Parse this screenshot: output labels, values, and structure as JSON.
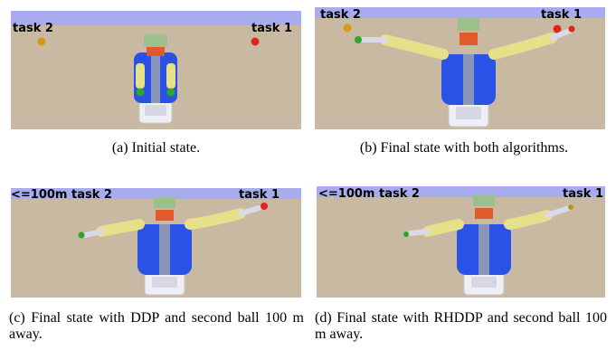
{
  "figure": {
    "panels": [
      {
        "id": "a",
        "labels": {
          "left": "task 2",
          "right": "task 1"
        },
        "arms": "down",
        "ball_left_color": "#d39a1a",
        "ball_right_color": "#e0261b",
        "caption": "(a) Initial state."
      },
      {
        "id": "b",
        "labels": {
          "left": "task 2",
          "right": "task 1"
        },
        "arms": "up",
        "ball_left_color": "#d39a1a",
        "ball_right_color": "#e0261b",
        "caption": "(b) Final state with both algorithms."
      },
      {
        "id": "c",
        "labels": {
          "left": "<=100m task 2",
          "right": "task 1"
        },
        "arms": "out",
        "ball_left_color": null,
        "ball_right_color": "#e0261b",
        "caption": "(c) Final state with DDP and second ball 100 m away."
      },
      {
        "id": "d",
        "labels": {
          "left": "<=100m task 2",
          "right": "task 1"
        },
        "arms": "out-low",
        "ball_left_color": null,
        "ball_right_color": null,
        "caption": "(d) Final state with RHDDP and second ball 100 m away."
      }
    ],
    "colors": {
      "sky": "#a8abee",
      "floor": "#c9b9a2",
      "floor_far": "#bfb09a",
      "robot_blue": "#2a52e6",
      "robot_yellow": "#e7e08a",
      "robot_base": "#eeeef5",
      "head_green": "#9bc08c",
      "gripper_green": "#2da629"
    }
  }
}
